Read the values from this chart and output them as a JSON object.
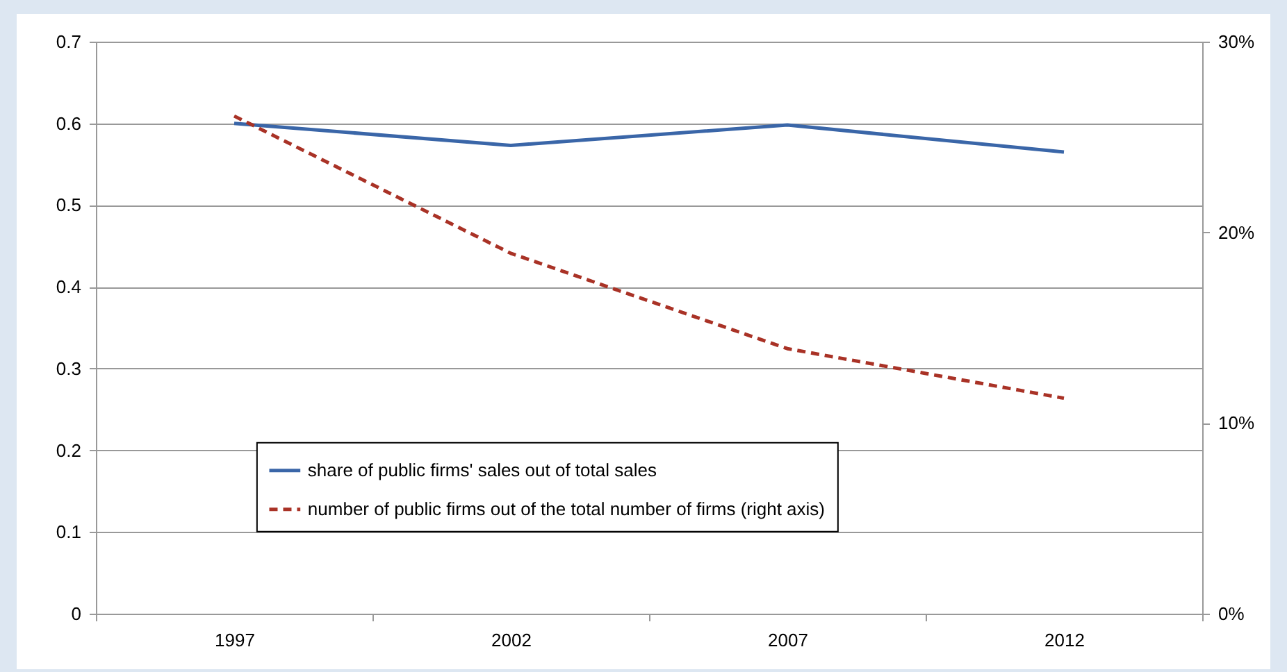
{
  "chart_data": {
    "type": "line",
    "categories": [
      "1997",
      "2002",
      "2007",
      "2012"
    ],
    "series": [
      {
        "name": "share of public firms' sales out of total sales",
        "color": "#3a66a8",
        "line_style": "solid",
        "values": [
          0.6,
          0.573,
          0.598,
          0.565
        ]
      },
      {
        "name": "number of public firms out of the total number of firms (right axis)",
        "color": "#a93226",
        "line_style": "dashed",
        "axis": "y2",
        "values": [
          26.1,
          18.9,
          13.9,
          11.3
        ]
      }
    ],
    "ylim": [
      0,
      0.7
    ],
    "yticks": [
      {
        "value": 0,
        "label": "0"
      },
      0.1,
      0.2,
      0.3,
      0.4,
      0.5,
      0.6,
      0.7
    ],
    "y2lim": [
      0,
      30
    ],
    "y2ticks": [
      {
        "value": 0,
        "label": "0%"
      },
      {
        "value": 10,
        "label": "10%"
      },
      {
        "value": 20,
        "label": "20%"
      },
      {
        "value": 30,
        "label": "30%"
      }
    ],
    "grid": "y",
    "legend": "bottom",
    "marker": "none"
  }
}
